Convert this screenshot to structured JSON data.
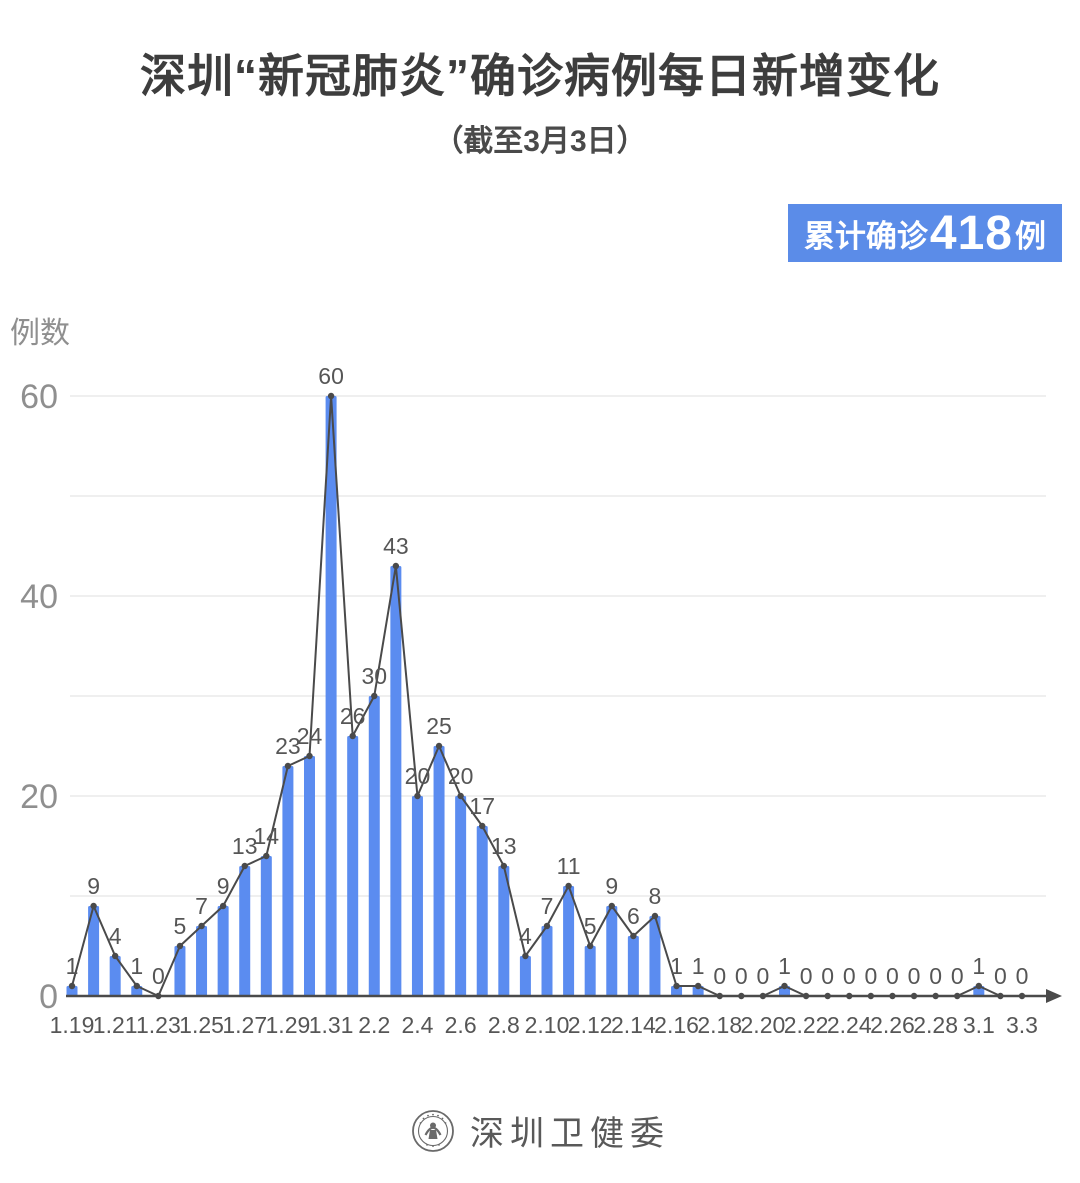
{
  "page": {
    "title": "深圳“新冠肺炎”确诊病例每日新增变化",
    "subtitle": "（截至3月3日）"
  },
  "badge": {
    "prefix": "累计确诊",
    "number": "418",
    "suffix": "例",
    "bg_color": "#5b8ce8",
    "text_color": "#ffffff"
  },
  "chart_data": {
    "type": "bar",
    "overlay": "line",
    "title": "深圳“新冠肺炎”确诊病例每日新增变化",
    "subtitle": "（截至3月3日）",
    "xlabel": "",
    "ylabel": "例数",
    "categories": [
      "1.19",
      "1.20",
      "1.21",
      "1.22",
      "1.23",
      "1.24",
      "1.25",
      "1.26",
      "1.27",
      "1.28",
      "1.29",
      "1.30",
      "1.31",
      "2.1",
      "2.2",
      "2.3",
      "2.4",
      "2.5",
      "2.6",
      "2.7",
      "2.8",
      "2.9",
      "2.10",
      "2.11",
      "2.12",
      "2.13",
      "2.14",
      "2.15",
      "2.16",
      "2.17",
      "2.18",
      "2.19",
      "2.20",
      "2.21",
      "2.22",
      "2.23",
      "2.24",
      "2.25",
      "2.26",
      "2.27",
      "2.28",
      "2.29",
      "3.1",
      "3.2",
      "3.3"
    ],
    "values": [
      1,
      9,
      4,
      1,
      0,
      5,
      7,
      9,
      13,
      14,
      23,
      24,
      60,
      26,
      30,
      43,
      20,
      25,
      20,
      17,
      13,
      4,
      7,
      11,
      5,
      9,
      6,
      8,
      1,
      1,
      0,
      0,
      0,
      1,
      0,
      0,
      0,
      0,
      0,
      0,
      0,
      0,
      1,
      0,
      0
    ],
    "x_ticks_shown": [
      "1.19",
      "1.21",
      "1.23",
      "1.25",
      "1.27",
      "1.29",
      "1.31",
      "2.2",
      "2.4",
      "2.6",
      "2.8",
      "2.10",
      "2.12",
      "2.14",
      "2.16",
      "2.18",
      "2.20",
      "2.22",
      "2.24",
      "2.26",
      "2.28",
      "3.1",
      "3.3"
    ],
    "ylim": [
      0,
      60
    ],
    "yticks_labeled": [
      0,
      20,
      40,
      60
    ],
    "grid_interval": 10,
    "grid": "horizontal",
    "legend": "none",
    "data_labels": "shown",
    "bar_color": "#5b8cf0",
    "line_color": "#4a4a4a",
    "label_color": "#565656",
    "axis_label_color": "#8f8f8f",
    "gridline_color": "#eaeaea",
    "cumulative_total": 418
  },
  "footer": {
    "logo": "shenzhen-health-commission-seal",
    "text": "深圳卫健委"
  }
}
